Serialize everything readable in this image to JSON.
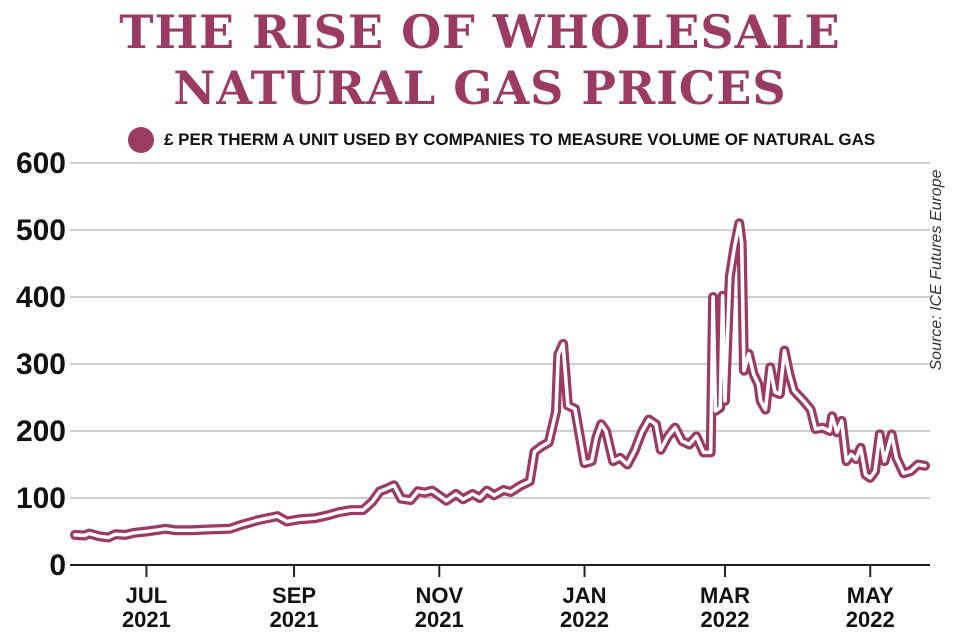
{
  "title_lines": [
    "THE RISE OF WHOLESALE",
    "NATURAL GAS PRICES"
  ],
  "source": "Source:  ICE Futures Europe",
  "colors": {
    "accent": "#9b3b63",
    "grid": "#bdbdbd",
    "axis": "#222222"
  },
  "chart_data": {
    "type": "line",
    "title": "THE RISE OF WHOLESALE NATURAL GAS PRICES",
    "xlabel": "",
    "ylabel": "",
    "ylim": [
      0,
      600
    ],
    "yticks": [
      0,
      100,
      200,
      300,
      400,
      500,
      600
    ],
    "grid": true,
    "legend_position": "top-left",
    "x_ticks": [
      {
        "date": "2021-07-01",
        "month": "JUL",
        "year": "2021"
      },
      {
        "date": "2021-09-01",
        "month": "SEP",
        "year": "2021"
      },
      {
        "date": "2021-11-01",
        "month": "NOV",
        "year": "2021"
      },
      {
        "date": "2022-01-01",
        "month": "JAN",
        "year": "2022"
      },
      {
        "date": "2022-03-01",
        "month": "MAR",
        "year": "2022"
      },
      {
        "date": "2022-05-01",
        "month": "MAY",
        "year": "2022"
      }
    ],
    "x_range": [
      "2021-06-01",
      "2022-05-24"
    ],
    "series": [
      {
        "name": "£ PER THERM A UNIT USED BY COMPANIES TO MEASURE VOLUME OF NATURAL GAS",
        "points": [
          [
            "2021-06-01",
            45
          ],
          [
            "2021-06-05",
            44
          ],
          [
            "2021-06-07",
            47
          ],
          [
            "2021-06-11",
            43
          ],
          [
            "2021-06-15",
            41
          ],
          [
            "2021-06-18",
            46
          ],
          [
            "2021-06-22",
            45
          ],
          [
            "2021-06-26",
            48
          ],
          [
            "2021-07-01",
            50
          ],
          [
            "2021-07-05",
            52
          ],
          [
            "2021-07-09",
            54
          ],
          [
            "2021-07-13",
            52
          ],
          [
            "2021-07-20",
            52
          ],
          [
            "2021-07-27",
            53
          ],
          [
            "2021-08-05",
            54
          ],
          [
            "2021-08-10",
            60
          ],
          [
            "2021-08-17",
            67
          ],
          [
            "2021-08-25",
            73
          ],
          [
            "2021-08-29",
            65
          ],
          [
            "2021-09-03",
            68
          ],
          [
            "2021-09-10",
            70
          ],
          [
            "2021-09-15",
            74
          ],
          [
            "2021-09-20",
            79
          ],
          [
            "2021-09-25",
            82
          ],
          [
            "2021-09-30",
            82
          ],
          [
            "2021-10-04",
            95
          ],
          [
            "2021-10-07",
            110
          ],
          [
            "2021-10-10",
            114
          ],
          [
            "2021-10-13",
            119
          ],
          [
            "2021-10-16",
            99
          ],
          [
            "2021-10-20",
            97
          ],
          [
            "2021-10-23",
            110
          ],
          [
            "2021-10-26",
            108
          ],
          [
            "2021-10-29",
            111
          ],
          [
            "2021-11-02",
            101
          ],
          [
            "2021-11-04",
            96
          ],
          [
            "2021-11-08",
            106
          ],
          [
            "2021-11-11",
            98
          ],
          [
            "2021-11-15",
            106
          ],
          [
            "2021-11-18",
            100
          ],
          [
            "2021-11-21",
            111
          ],
          [
            "2021-11-24",
            104
          ],
          [
            "2021-11-28",
            112
          ],
          [
            "2021-12-01",
            109
          ],
          [
            "2021-12-05",
            118
          ],
          [
            "2021-12-09",
            125
          ],
          [
            "2021-12-11",
            169
          ],
          [
            "2021-12-14",
            177
          ],
          [
            "2021-12-17",
            183
          ],
          [
            "2021-12-20",
            229
          ],
          [
            "2021-12-21",
            314
          ],
          [
            "2021-12-23",
            330
          ],
          [
            "2021-12-25",
            238
          ],
          [
            "2021-12-28",
            233
          ],
          [
            "2022-01-01",
            152
          ],
          [
            "2022-01-04",
            155
          ],
          [
            "2022-01-06",
            190
          ],
          [
            "2022-01-08",
            210
          ],
          [
            "2022-01-10",
            200
          ],
          [
            "2022-01-13",
            155
          ],
          [
            "2022-01-16",
            160
          ],
          [
            "2022-01-19",
            150
          ],
          [
            "2022-01-22",
            170
          ],
          [
            "2022-01-25",
            198
          ],
          [
            "2022-01-28",
            217
          ],
          [
            "2022-01-31",
            210
          ],
          [
            "2022-02-02",
            172
          ],
          [
            "2022-02-05",
            192
          ],
          [
            "2022-02-08",
            205
          ],
          [
            "2022-02-11",
            185
          ],
          [
            "2022-02-14",
            180
          ],
          [
            "2022-02-17",
            192
          ],
          [
            "2022-02-20",
            168
          ],
          [
            "2022-02-23",
            168
          ],
          [
            "2022-02-24",
            400
          ],
          [
            "2022-02-25",
            230
          ],
          [
            "2022-02-27",
            235
          ],
          [
            "2022-02-28",
            402
          ],
          [
            "2022-03-01",
            245
          ],
          [
            "2022-03-03",
            430
          ],
          [
            "2022-03-05",
            475
          ],
          [
            "2022-03-07",
            510
          ],
          [
            "2022-03-08",
            480
          ],
          [
            "2022-03-09",
            290
          ],
          [
            "2022-03-11",
            315
          ],
          [
            "2022-03-13",
            285
          ],
          [
            "2022-03-15",
            270
          ],
          [
            "2022-03-16",
            245
          ],
          [
            "2022-03-18",
            232
          ],
          [
            "2022-03-20",
            295
          ],
          [
            "2022-03-22",
            258
          ],
          [
            "2022-03-24",
            255
          ],
          [
            "2022-03-26",
            320
          ],
          [
            "2022-03-28",
            285
          ],
          [
            "2022-03-30",
            260
          ],
          [
            "2022-04-03",
            245
          ],
          [
            "2022-04-06",
            232
          ],
          [
            "2022-04-08",
            203
          ],
          [
            "2022-04-11",
            205
          ],
          [
            "2022-04-14",
            200
          ],
          [
            "2022-04-15",
            222
          ],
          [
            "2022-04-17",
            198
          ],
          [
            "2022-04-19",
            215
          ],
          [
            "2022-04-21",
            155
          ],
          [
            "2022-04-23",
            165
          ],
          [
            "2022-04-25",
            158
          ],
          [
            "2022-04-27",
            175
          ],
          [
            "2022-04-29",
            135
          ],
          [
            "2022-05-01",
            130
          ],
          [
            "2022-05-03",
            140
          ],
          [
            "2022-05-05",
            195
          ],
          [
            "2022-05-07",
            155
          ],
          [
            "2022-05-10",
            195
          ],
          [
            "2022-05-12",
            160
          ],
          [
            "2022-05-15",
            137
          ],
          [
            "2022-05-18",
            140
          ],
          [
            "2022-05-21",
            150
          ],
          [
            "2022-05-24",
            148
          ]
        ]
      }
    ]
  }
}
